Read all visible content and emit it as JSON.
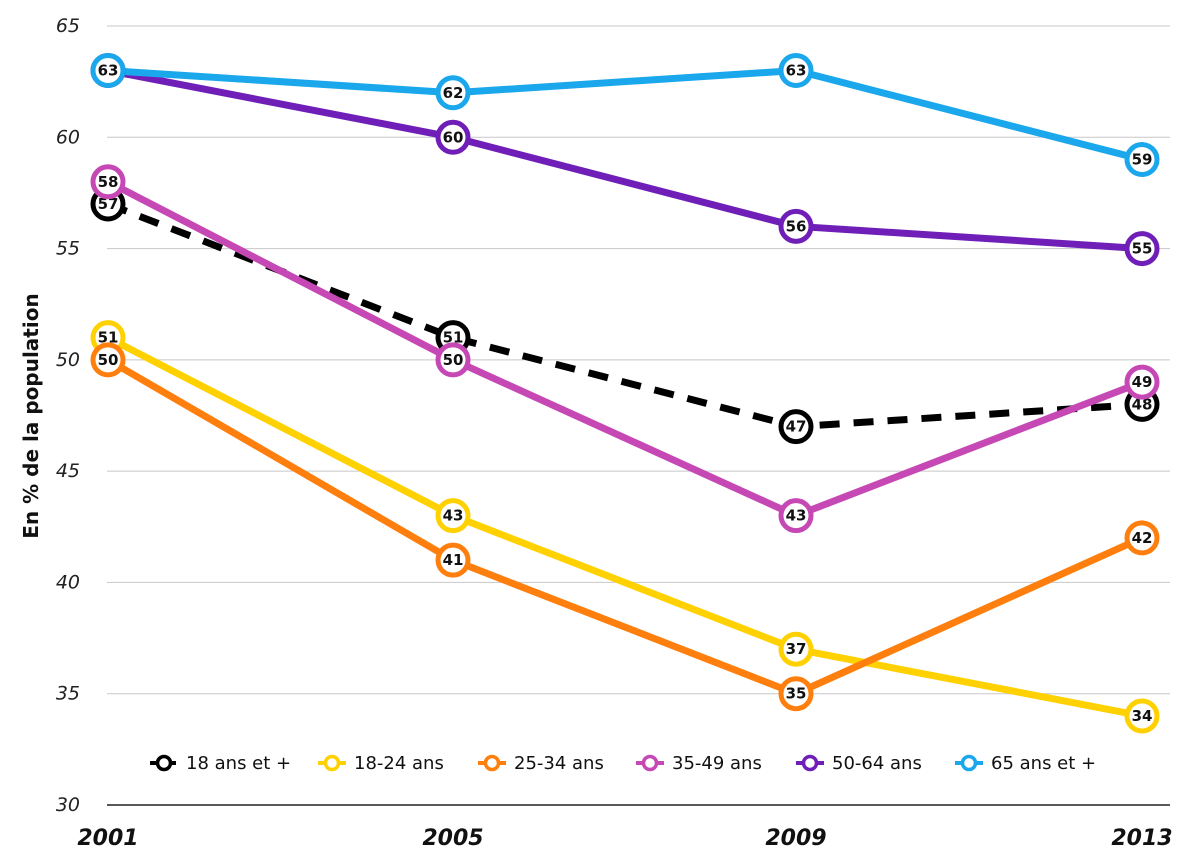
{
  "chart_data": {
    "type": "line",
    "categories": [
      "2001",
      "2005",
      "2009",
      "2013"
    ],
    "ylabel": "En % de la population",
    "xlabel": "",
    "ylim": [
      30,
      65
    ],
    "yticks": [
      30,
      35,
      40,
      45,
      50,
      55,
      60,
      65
    ],
    "grid": true,
    "legend_position": "bottom",
    "series": [
      {
        "name": "18 ans et +",
        "values": [
          57,
          51,
          47,
          48
        ],
        "color": "#000000",
        "dashed": true
      },
      {
        "name": "18-24 ans",
        "values": [
          51,
          43,
          37,
          34
        ],
        "color": "#FFD100",
        "dashed": false
      },
      {
        "name": "25-34 ans",
        "values": [
          50,
          41,
          35,
          42
        ],
        "color": "#FF7F0E",
        "dashed": false
      },
      {
        "name": "35-49 ans",
        "values": [
          58,
          50,
          43,
          49
        ],
        "color": "#C548B5",
        "dashed": false
      },
      {
        "name": "50-64 ans",
        "values": [
          63,
          60,
          56,
          55
        ],
        "color": "#6F1FB8",
        "dashed": false
      },
      {
        "name": "65 ans et +",
        "values": [
          63,
          62,
          63,
          59
        ],
        "color": "#1AA7EC",
        "dashed": false
      }
    ]
  }
}
